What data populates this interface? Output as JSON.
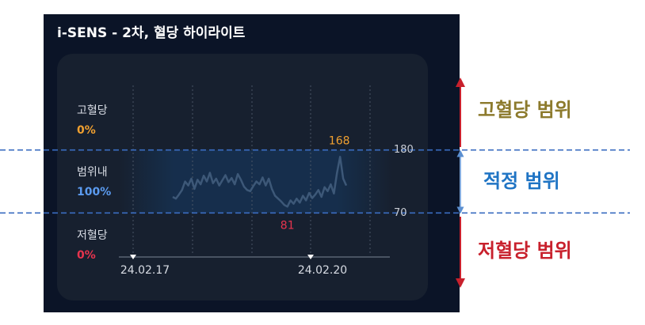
{
  "title": "i-SENS - 2차, 혈당 하이라이트",
  "stats": [
    {
      "label": "고혈당",
      "value": "0%",
      "color": "#f0a030"
    },
    {
      "label": "범위내",
      "value": "100%",
      "color": "#5b9bf0"
    },
    {
      "label": "저혈당",
      "value": "0%",
      "color": "#e8344e"
    }
  ],
  "chart_data": {
    "type": "line",
    "values": [
      98,
      95,
      102,
      110,
      125,
      118,
      130,
      112,
      128,
      120,
      135,
      125,
      140,
      122,
      130,
      118,
      127,
      136,
      124,
      131,
      120,
      138,
      128,
      116,
      110,
      108,
      117,
      125,
      120,
      132,
      118,
      130,
      112,
      100,
      95,
      90,
      84,
      81,
      92,
      86,
      95,
      88,
      100,
      92,
      105,
      96,
      102,
      110,
      98,
      115,
      108,
      120,
      104,
      140,
      168,
      130,
      118
    ],
    "color": "#3d5878",
    "ylim": [
      0,
      290
    ],
    "yticks": [
      70,
      180
    ],
    "max": 168,
    "min": 81,
    "x_labels": [
      "24.02.17",
      "24.02.20"
    ]
  },
  "range_labels": [
    {
      "text": "고혈당 범위",
      "color": "#8c7a2c"
    },
    {
      "text": "적정 범위",
      "color": "#1f74c4"
    },
    {
      "text": "저혈당 범위",
      "color": "#c8202c"
    }
  ]
}
